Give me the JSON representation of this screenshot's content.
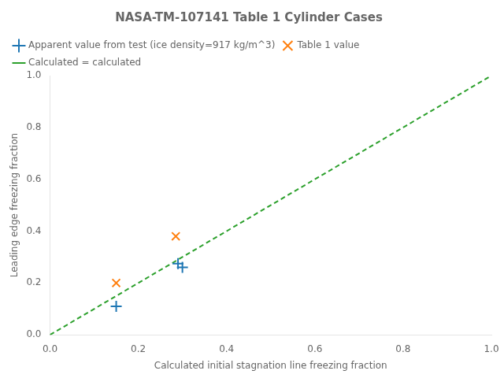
{
  "chart_data": {
    "type": "scatter",
    "title": "NASA-TM-107141 Table 1 Cylinder Cases",
    "xlabel": "Calculated initial stagnation line freezing fraction",
    "ylabel": "Leading edge freezing fraction",
    "xlim": [
      0.0,
      1.0
    ],
    "ylim": [
      0.0,
      1.0
    ],
    "xticks": [
      {
        "value": 0.0,
        "label": "0.0"
      },
      0.2,
      0.4,
      0.6,
      0.8,
      {
        "value": 1.0,
        "label": "1.0"
      }
    ],
    "yticks": [
      {
        "value": 0.0,
        "label": "0.0"
      },
      0.2,
      0.4,
      0.6,
      0.8,
      {
        "value": 1.0,
        "label": "1.0"
      }
    ],
    "grid": false,
    "legend": "upper left",
    "series": [
      {
        "name": "Apparent value from test (ice density=917 kg/m^3)",
        "type": "scatter",
        "marker": "plus",
        "color": "#1f77b4",
        "x": [
          0.15,
          0.29,
          0.3
        ],
        "values": [
          0.11,
          0.275,
          0.26
        ]
      },
      {
        "name": "Table 1 value",
        "type": "scatter",
        "marker": "cross",
        "color": "#ff7f0e",
        "x": [
          0.15,
          0.285
        ],
        "values": [
          0.2,
          0.38
        ]
      },
      {
        "name": "Calculated = calculated",
        "type": "line",
        "line_style": "dashed",
        "color": "#2ca02c",
        "x": [
          0.0,
          1.0
        ],
        "values": [
          0.0,
          1.0
        ]
      }
    ]
  }
}
